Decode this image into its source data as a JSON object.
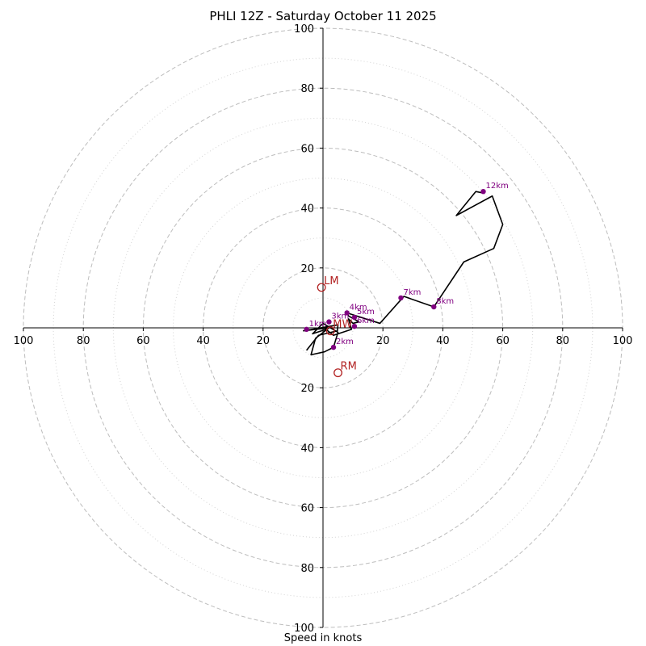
{
  "chart_data": {
    "type": "hodograph",
    "title": "PHLI 12Z - Saturday October 11 2025",
    "xlabel": "Speed in knots",
    "range": [
      -100,
      100
    ],
    "ring_major": [
      20,
      40,
      60,
      80,
      100
    ],
    "ring_minor": [
      10,
      30,
      50,
      70,
      90
    ],
    "x_ticks": [
      "100",
      "80",
      "60",
      "40",
      "20",
      "20",
      "40",
      "60",
      "80",
      "100"
    ],
    "x_tick_values": [
      -100,
      -80,
      -60,
      -40,
      -20,
      20,
      40,
      60,
      80,
      100
    ],
    "y_ticks": [
      "100",
      "80",
      "60",
      "40",
      "20",
      "20",
      "40",
      "60",
      "80",
      "100"
    ],
    "y_tick_values": [
      100,
      80,
      60,
      40,
      20,
      -20,
      -40,
      -60,
      -80,
      -100
    ],
    "hodograph_line": {
      "u": [
        -5.5,
        -1.5,
        4.8,
        5.0,
        -6.5,
        2.0,
        -2.5,
        -4.0,
        0.5,
        3.5,
        5.0,
        0.0,
        -3.5,
        1.0,
        3.5,
        9.5,
        8.5,
        10.0,
        12.0,
        8.5,
        8.0,
        19.0,
        27.0,
        37.0,
        47.0,
        57.0,
        60.0,
        56.5,
        44.5,
        51.0,
        53.5
      ],
      "v": [
        -7.5,
        -2.5,
        -1.0,
        1.0,
        -1.0,
        0.0,
        -3.5,
        -9.0,
        -8.0,
        -6.5,
        -1.5,
        1.5,
        -2.0,
        -0.5,
        -2.5,
        -0.5,
        3.0,
        1.5,
        2.0,
        4.0,
        5.0,
        1.5,
        10.5,
        7.0,
        22.0,
        26.5,
        34.5,
        44.0,
        37.5,
        45.5,
        45.0
      ]
    },
    "height_markers": [
      {
        "label": "1km",
        "u": -5.5,
        "v": -0.5
      },
      {
        "label": "2km",
        "u": 3.5,
        "v": -6.5
      },
      {
        "label": "3km",
        "u": 2.0,
        "v": 2.0
      },
      {
        "label": "4km",
        "u": 8.0,
        "v": 5.0
      },
      {
        "label": "5km",
        "u": 10.5,
        "v": 3.5
      },
      {
        "label": "6km",
        "u": 10.5,
        "v": 0.5
      },
      {
        "label": "7km",
        "u": 26.0,
        "v": 10.0
      },
      {
        "label": "8km",
        "u": 37.0,
        "v": 7.0
      },
      {
        "label": "12km",
        "u": 53.5,
        "v": 45.5
      }
    ],
    "motion_markers": [
      {
        "label": "LM",
        "u": -0.5,
        "v": 13.5
      },
      {
        "label": "RM",
        "u": 5.0,
        "v": -15.0
      },
      {
        "label": "MW",
        "u": 2.5,
        "v": -1.0
      }
    ],
    "colors": {
      "line": "#000000",
      "height_marker": "#800080",
      "motion_marker": "#b22222",
      "ring_major": "#bdbdbd",
      "ring_minor": "#d3d3d3"
    }
  }
}
